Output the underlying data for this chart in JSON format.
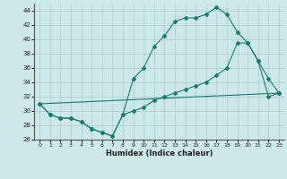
{
  "background_color": "#cce8e8",
  "grid_color": "#aacccc",
  "line_color": "#1a7a6e",
  "xlabel": "Humidex (Indice chaleur)",
  "xlim": [
    -0.5,
    23.5
  ],
  "ylim": [
    26,
    45
  ],
  "yticks": [
    26,
    28,
    30,
    32,
    34,
    36,
    38,
    40,
    42,
    44
  ],
  "xticks": [
    0,
    1,
    2,
    3,
    4,
    5,
    6,
    7,
    8,
    9,
    10,
    11,
    12,
    13,
    14,
    15,
    16,
    17,
    18,
    19,
    20,
    21,
    22,
    23
  ],
  "line1_x": [
    0,
    1,
    2,
    3,
    4,
    5,
    6,
    7,
    8,
    9,
    10,
    11,
    12,
    13,
    14,
    15,
    16,
    17,
    18,
    19,
    20,
    21,
    22,
    23
  ],
  "line1_y": [
    31.0,
    29.5,
    29.0,
    29.0,
    28.5,
    27.5,
    27.0,
    26.5,
    29.5,
    34.5,
    36.0,
    39.0,
    40.5,
    42.5,
    43.0,
    43.0,
    43.5,
    44.5,
    43.5,
    41.0,
    39.5,
    37.0,
    34.5,
    32.5
  ],
  "line2_x": [
    0,
    1,
    2,
    3,
    4,
    5,
    6,
    7,
    8,
    9,
    10,
    11,
    12,
    13,
    14,
    15,
    16,
    17,
    18,
    19,
    20,
    21,
    22,
    23
  ],
  "line2_y": [
    31.0,
    29.5,
    29.0,
    29.0,
    28.5,
    27.5,
    27.0,
    26.5,
    29.5,
    30.0,
    30.5,
    31.5,
    32.0,
    32.5,
    33.0,
    33.5,
    34.0,
    35.0,
    36.0,
    39.5,
    39.5,
    37.0,
    32.0,
    32.5
  ],
  "line3_x": [
    0,
    23
  ],
  "line3_y": [
    31.0,
    32.5
  ]
}
